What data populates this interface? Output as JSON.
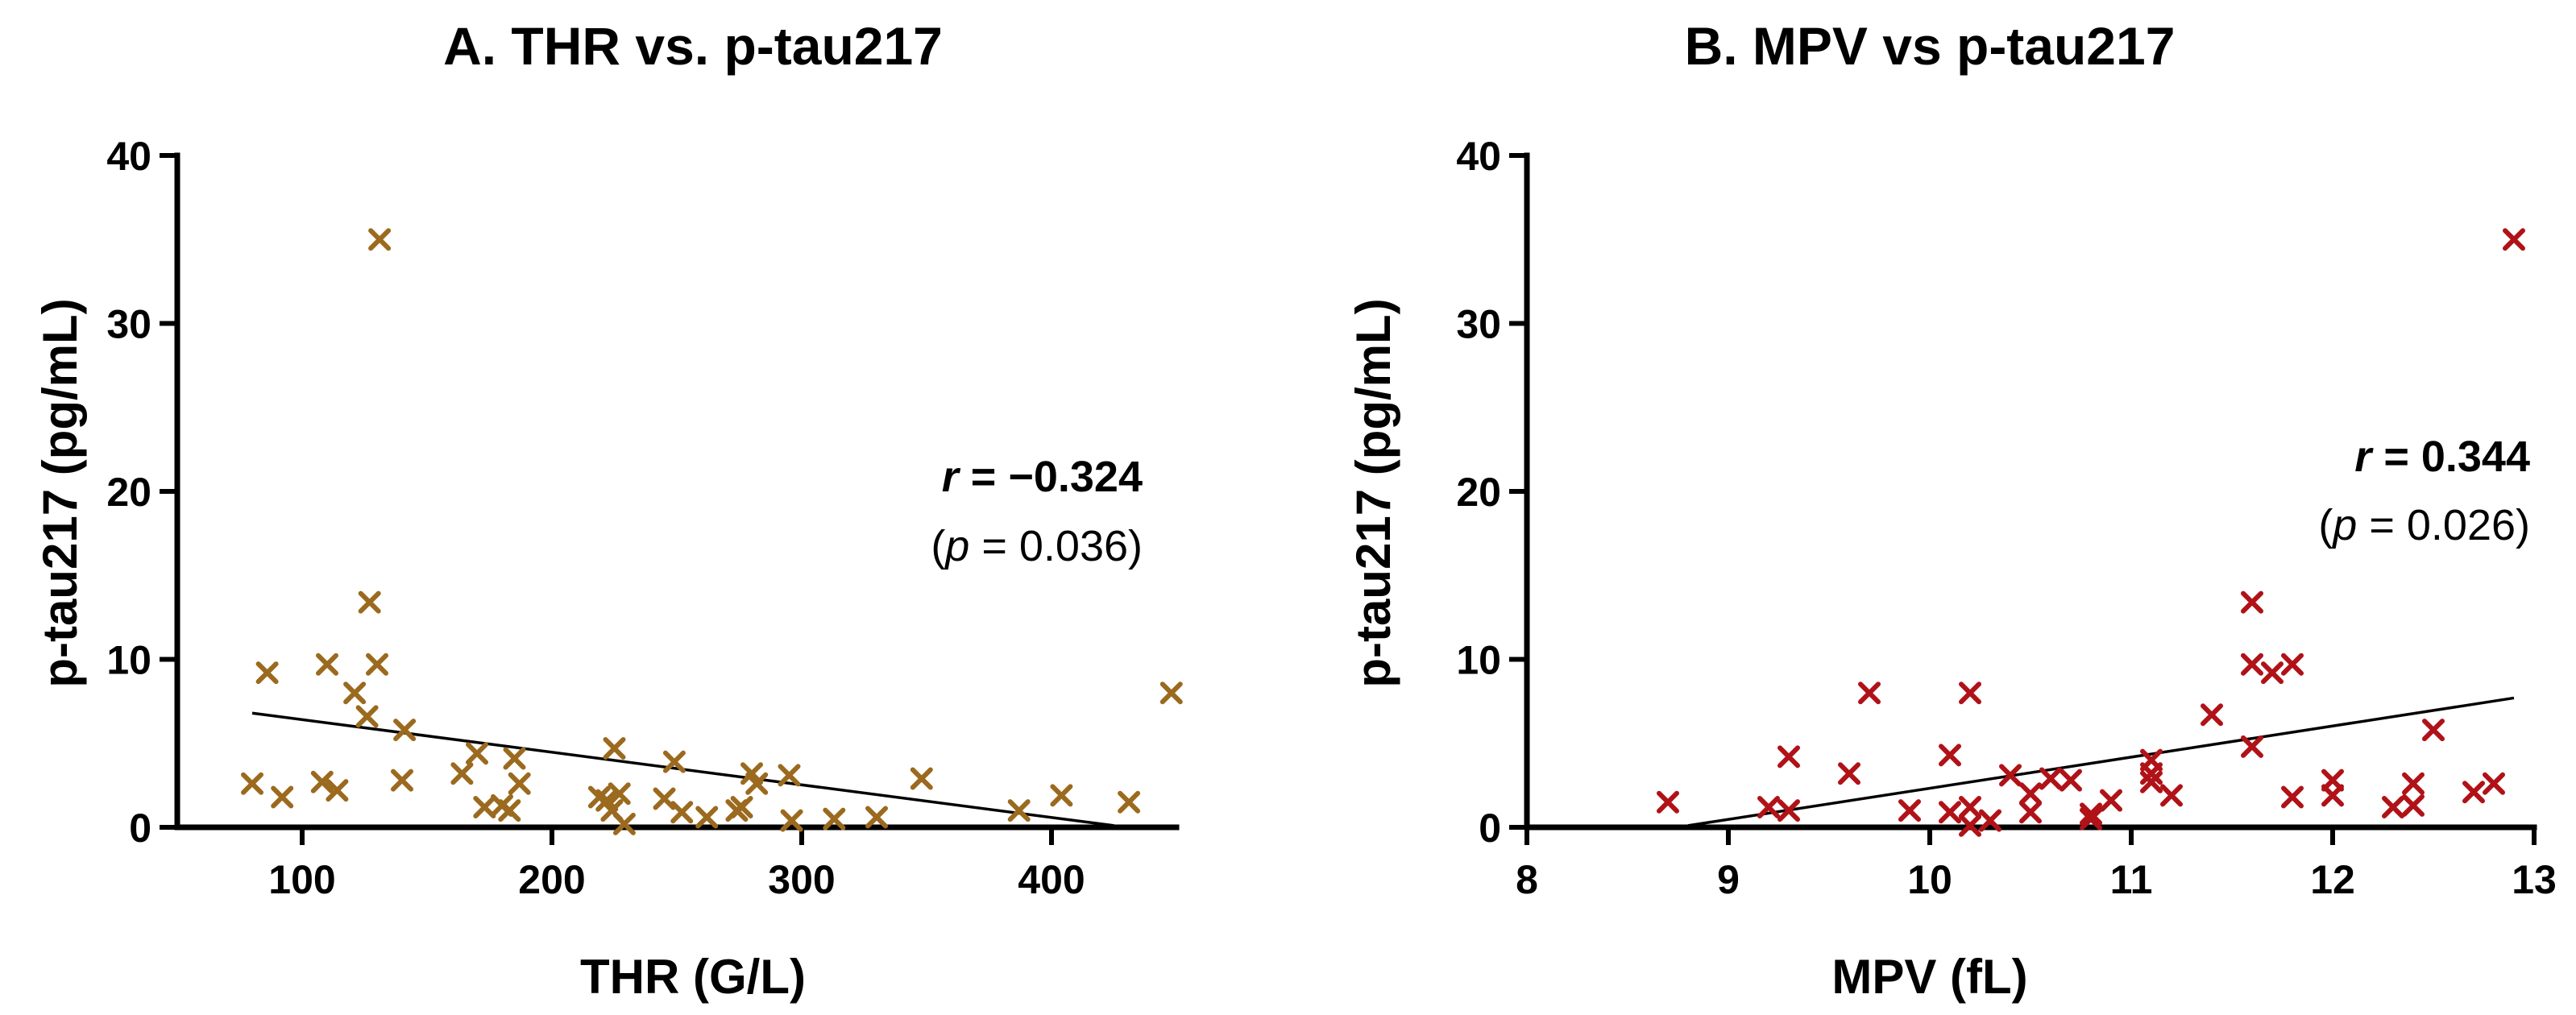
{
  "chart_data": [
    {
      "type": "scatter",
      "title": "A. THR vs. p-tau217",
      "xlabel": "THR (G/L)",
      "ylabel": "p-tau217 (pg/mL)",
      "xlim": [
        50,
        450
      ],
      "ylim": [
        0,
        40
      ],
      "xticks": [
        100,
        200,
        300,
        400
      ],
      "yticks": [
        0,
        10,
        20,
        30,
        40
      ],
      "marker": "x",
      "marker_color": "#9B6A1E",
      "stats": {
        "r_symbol": "r",
        "r_text": " = −0.324",
        "p_open": "(",
        "p_symbol": "p",
        "p_text": " = 0.036)"
      },
      "fit_line": {
        "x": [
          80,
          425
        ],
        "y": [
          6.8,
          0.1
        ]
      },
      "points": [
        {
          "x": 80,
          "y": 2.6
        },
        {
          "x": 86,
          "y": 9.2
        },
        {
          "x": 92,
          "y": 1.8
        },
        {
          "x": 108,
          "y": 2.7
        },
        {
          "x": 110,
          "y": 9.7
        },
        {
          "x": 114,
          "y": 2.2
        },
        {
          "x": 121,
          "y": 8.0
        },
        {
          "x": 126,
          "y": 6.6
        },
        {
          "x": 127,
          "y": 13.4
        },
        {
          "x": 130,
          "y": 9.7
        },
        {
          "x": 131,
          "y": 35.0
        },
        {
          "x": 140,
          "y": 2.8
        },
        {
          "x": 141,
          "y": 5.8
        },
        {
          "x": 164,
          "y": 3.2
        },
        {
          "x": 170,
          "y": 4.4
        },
        {
          "x": 173,
          "y": 1.2
        },
        {
          "x": 180,
          "y": 1.3
        },
        {
          "x": 183,
          "y": 1.0
        },
        {
          "x": 185,
          "y": 4.1
        },
        {
          "x": 187,
          "y": 2.6
        },
        {
          "x": 219,
          "y": 1.8
        },
        {
          "x": 222,
          "y": 1.6
        },
        {
          "x": 224,
          "y": 1.0
        },
        {
          "x": 225,
          "y": 4.7
        },
        {
          "x": 227,
          "y": 2.0
        },
        {
          "x": 229,
          "y": 0.2
        },
        {
          "x": 245,
          "y": 1.7
        },
        {
          "x": 249,
          "y": 3.9
        },
        {
          "x": 252,
          "y": 0.9
        },
        {
          "x": 262,
          "y": 0.6
        },
        {
          "x": 274,
          "y": 1.0
        },
        {
          "x": 276,
          "y": 1.2
        },
        {
          "x": 280,
          "y": 3.2
        },
        {
          "x": 282,
          "y": 2.6
        },
        {
          "x": 295,
          "y": 3.1
        },
        {
          "x": 296,
          "y": 0.4
        },
        {
          "x": 313,
          "y": 0.5
        },
        {
          "x": 330,
          "y": 0.6
        },
        {
          "x": 348,
          "y": 2.9
        },
        {
          "x": 387,
          "y": 1.0
        },
        {
          "x": 404,
          "y": 1.9
        },
        {
          "x": 431,
          "y": 1.5
        },
        {
          "x": 448,
          "y": 8.0
        }
      ]
    },
    {
      "type": "scatter",
      "title": "B. MPV vs p-tau217",
      "xlabel": "MPV (fL)",
      "ylabel": "p-tau217 (pg/mL)",
      "xlim": [
        8,
        13
      ],
      "ylim": [
        0,
        40
      ],
      "xticks": [
        8,
        9,
        10,
        11,
        12,
        13
      ],
      "yticks": [
        0,
        10,
        20,
        30,
        40
      ],
      "marker": "x",
      "marker_color": "#B01218",
      "stats": {
        "r_symbol": "r",
        "r_text": " = 0.344",
        "p_open": "(",
        "p_symbol": "p",
        "p_text": " = 0.026)"
      },
      "fit_line": {
        "x": [
          8.8,
          12.9
        ],
        "y": [
          0.1,
          7.7
        ]
      },
      "points": [
        {
          "x": 8.7,
          "y": 1.5
        },
        {
          "x": 9.2,
          "y": 1.2
        },
        {
          "x": 9.3,
          "y": 1.0
        },
        {
          "x": 9.3,
          "y": 4.2
        },
        {
          "x": 9.6,
          "y": 3.2
        },
        {
          "x": 9.7,
          "y": 8.0
        },
        {
          "x": 9.9,
          "y": 1.0
        },
        {
          "x": 10.1,
          "y": 4.3
        },
        {
          "x": 10.1,
          "y": 0.9
        },
        {
          "x": 10.2,
          "y": 0.1
        },
        {
          "x": 10.2,
          "y": 1.2
        },
        {
          "x": 10.2,
          "y": 8.0
        },
        {
          "x": 10.3,
          "y": 0.4
        },
        {
          "x": 10.4,
          "y": 3.1
        },
        {
          "x": 10.5,
          "y": 2.0
        },
        {
          "x": 10.5,
          "y": 0.9
        },
        {
          "x": 10.6,
          "y": 2.9
        },
        {
          "x": 10.7,
          "y": 2.8
        },
        {
          "x": 10.8,
          "y": 0.8
        },
        {
          "x": 10.8,
          "y": 0.5
        },
        {
          "x": 10.9,
          "y": 1.6
        },
        {
          "x": 11.1,
          "y": 4.0
        },
        {
          "x": 11.1,
          "y": 3.2
        },
        {
          "x": 11.1,
          "y": 2.7
        },
        {
          "x": 11.2,
          "y": 1.9
        },
        {
          "x": 11.4,
          "y": 6.7
        },
        {
          "x": 11.6,
          "y": 13.4
        },
        {
          "x": 11.6,
          "y": 9.7
        },
        {
          "x": 11.6,
          "y": 4.8
        },
        {
          "x": 11.7,
          "y": 9.2
        },
        {
          "x": 11.8,
          "y": 9.7
        },
        {
          "x": 11.8,
          "y": 1.8
        },
        {
          "x": 12.0,
          "y": 2.8
        },
        {
          "x": 12.0,
          "y": 1.9
        },
        {
          "x": 12.3,
          "y": 1.2
        },
        {
          "x": 12.4,
          "y": 2.6
        },
        {
          "x": 12.4,
          "y": 1.3
        },
        {
          "x": 12.5,
          "y": 5.8
        },
        {
          "x": 12.7,
          "y": 2.1
        },
        {
          "x": 12.8,
          "y": 2.6
        },
        {
          "x": 12.9,
          "y": 35.0
        }
      ]
    }
  ]
}
